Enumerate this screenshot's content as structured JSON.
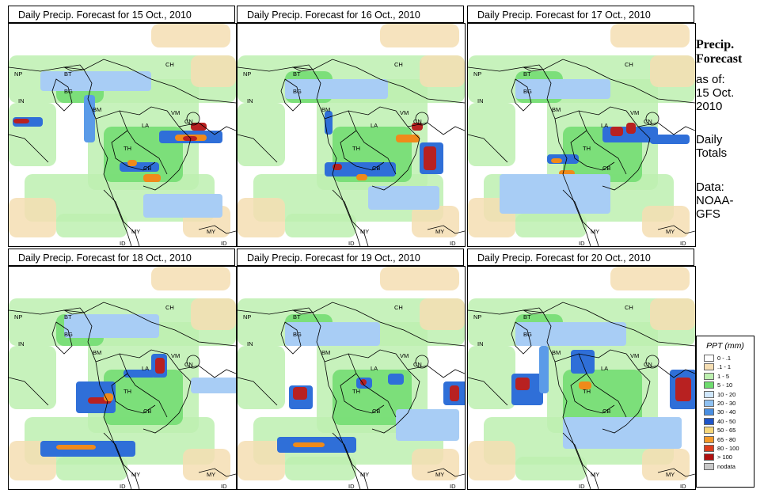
{
  "panels": [
    {
      "title": "Daily Precip. Forecast for  15 Oct., 2010",
      "blobs": [
        [
          5,
          118,
          38,
          12,
          "#2f6fd8"
        ],
        [
          6,
          120,
          20,
          6,
          "#b82121"
        ],
        [
          95,
          90,
          14,
          60,
          "#5b9be8"
        ],
        [
          190,
          135,
          80,
          16,
          "#2f6fd8"
        ],
        [
          210,
          140,
          40,
          8,
          "#f08a1a"
        ],
        [
          220,
          142,
          18,
          6,
          "#b82121"
        ],
        [
          140,
          175,
          50,
          12,
          "#2f6fd8"
        ],
        [
          150,
          172,
          12,
          8,
          "#f08a1a"
        ],
        [
          170,
          190,
          22,
          10,
          "#f08a1a"
        ],
        [
          230,
          125,
          20,
          10,
          "#b82121"
        ],
        [
          170,
          215,
          100,
          30,
          "#a8cdf5"
        ],
        [
          40,
          60,
          140,
          25,
          "#a8cdf5"
        ]
      ]
    },
    {
      "title": "Daily Precip. Forecast for  16 Oct., 2010",
      "blobs": [
        [
          230,
          150,
          30,
          40,
          "#2f6fd8"
        ],
        [
          235,
          155,
          16,
          30,
          "#b82121"
        ],
        [
          200,
          140,
          30,
          10,
          "#f08a1a"
        ],
        [
          110,
          175,
          90,
          18,
          "#2f6fd8"
        ],
        [
          120,
          177,
          12,
          8,
          "#b82121"
        ],
        [
          150,
          190,
          14,
          8,
          "#f08a1a"
        ],
        [
          165,
          205,
          90,
          30,
          "#a8cdf5"
        ],
        [
          60,
          70,
          130,
          25,
          "#a8cdf5"
        ],
        [
          110,
          110,
          10,
          30,
          "#2f6fd8"
        ],
        [
          220,
          125,
          14,
          10,
          "#b82121"
        ]
      ]
    },
    {
      "title": "Daily Precip. Forecast for  17 Oct., 2010",
      "blobs": [
        [
          170,
          130,
          70,
          20,
          "#2f6fd8"
        ],
        [
          180,
          130,
          16,
          12,
          "#b82121"
        ],
        [
          200,
          125,
          12,
          14,
          "#b82121"
        ],
        [
          100,
          165,
          40,
          12,
          "#2f6fd8"
        ],
        [
          105,
          170,
          14,
          6,
          "#f08a1a"
        ],
        [
          115,
          185,
          20,
          8,
          "#f08a1a"
        ],
        [
          230,
          140,
          50,
          12,
          "#2f6fd8"
        ],
        [
          40,
          190,
          140,
          50,
          "#a8cdf5"
        ],
        [
          60,
          70,
          120,
          25,
          "#a8cdf5"
        ]
      ]
    },
    {
      "title": "Daily Precip. Forecast for  18 Oct., 2010",
      "blobs": [
        [
          85,
          145,
          50,
          40,
          "#2f6fd8"
        ],
        [
          100,
          165,
          30,
          8,
          "#b82121"
        ],
        [
          120,
          160,
          12,
          10,
          "#f08a1a"
        ],
        [
          180,
          110,
          20,
          30,
          "#2f6fd8"
        ],
        [
          185,
          115,
          12,
          20,
          "#b82121"
        ],
        [
          145,
          130,
          40,
          10,
          "#2f6fd8"
        ],
        [
          40,
          220,
          120,
          20,
          "#2f6fd8"
        ],
        [
          60,
          225,
          50,
          6,
          "#f08a1a"
        ],
        [
          230,
          140,
          60,
          20,
          "#a8cdf5"
        ],
        [
          70,
          60,
          120,
          30,
          "#a8cdf5"
        ]
      ]
    },
    {
      "title": "Daily Precip. Forecast for  19 Oct., 2010",
      "blobs": [
        [
          65,
          150,
          30,
          30,
          "#2f6fd8"
        ],
        [
          70,
          152,
          18,
          16,
          "#b82121"
        ],
        [
          150,
          140,
          20,
          14,
          "#2f6fd8"
        ],
        [
          155,
          142,
          8,
          8,
          "#b82121"
        ],
        [
          190,
          135,
          20,
          14,
          "#2f6fd8"
        ],
        [
          50,
          215,
          100,
          20,
          "#2f6fd8"
        ],
        [
          70,
          222,
          40,
          6,
          "#f08a1a"
        ],
        [
          260,
          145,
          30,
          30,
          "#2f6fd8"
        ],
        [
          268,
          150,
          12,
          20,
          "#b82121"
        ],
        [
          200,
          180,
          80,
          40,
          "#a8cdf5"
        ],
        [
          60,
          70,
          120,
          30,
          "#a8cdf5"
        ]
      ]
    },
    {
      "title": "Daily Precip. Forecast for  20 Oct., 2010",
      "blobs": [
        [
          55,
          135,
          40,
          40,
          "#2f6fd8"
        ],
        [
          60,
          140,
          18,
          16,
          "#b82121"
        ],
        [
          90,
          100,
          12,
          60,
          "#5b9be8"
        ],
        [
          130,
          105,
          30,
          30,
          "#2f6fd8"
        ],
        [
          140,
          145,
          16,
          10,
          "#f08a1a"
        ],
        [
          255,
          130,
          34,
          50,
          "#2f6fd8"
        ],
        [
          262,
          140,
          20,
          30,
          "#b82121"
        ],
        [
          120,
          190,
          150,
          40,
          "#a8cdf5"
        ],
        [
          60,
          70,
          140,
          30,
          "#a8cdf5"
        ]
      ]
    }
  ],
  "country_labels": {
    "NP": "NP",
    "BT": "BT",
    "BG": "BG",
    "IN": "IN",
    "CH": "CH",
    "BM": "BM",
    "LA": "LA",
    "VM": "VM",
    "TH": "TH",
    "CB": "CB",
    "CN": "CN",
    "MY": "MY",
    "ID": "ID"
  },
  "side": {
    "title": "Precip. Forecast",
    "as_of_label": "as of:",
    "as_of_date": "15 Oct. 2010",
    "totals": "Daily Totals",
    "source": "Data: NOAA-GFS"
  },
  "legend": {
    "title": "PPT (mm)",
    "items": [
      {
        "label": "0 - .1",
        "color": "#ffffff"
      },
      {
        "label": ".1 - 1",
        "color": "#f5deb3"
      },
      {
        "label": "1 - 5",
        "color": "#bdf0b0"
      },
      {
        "label": "5 - 10",
        "color": "#6fdc6f"
      },
      {
        "label": "10 - 20",
        "color": "#cfe6fb"
      },
      {
        "label": "20 - 30",
        "color": "#8ec1f2"
      },
      {
        "label": "30 - 40",
        "color": "#4a8fe2"
      },
      {
        "label": "40 - 50",
        "color": "#1f55c8"
      },
      {
        "label": "50 - 65",
        "color": "#f6d77a"
      },
      {
        "label": "65 - 80",
        "color": "#f39a2a"
      },
      {
        "label": "80 - 100",
        "color": "#dc3c1c"
      },
      {
        "label": "> 100",
        "color": "#b01010"
      },
      {
        "label": "nodata",
        "color": "#c8c8c8"
      }
    ]
  }
}
